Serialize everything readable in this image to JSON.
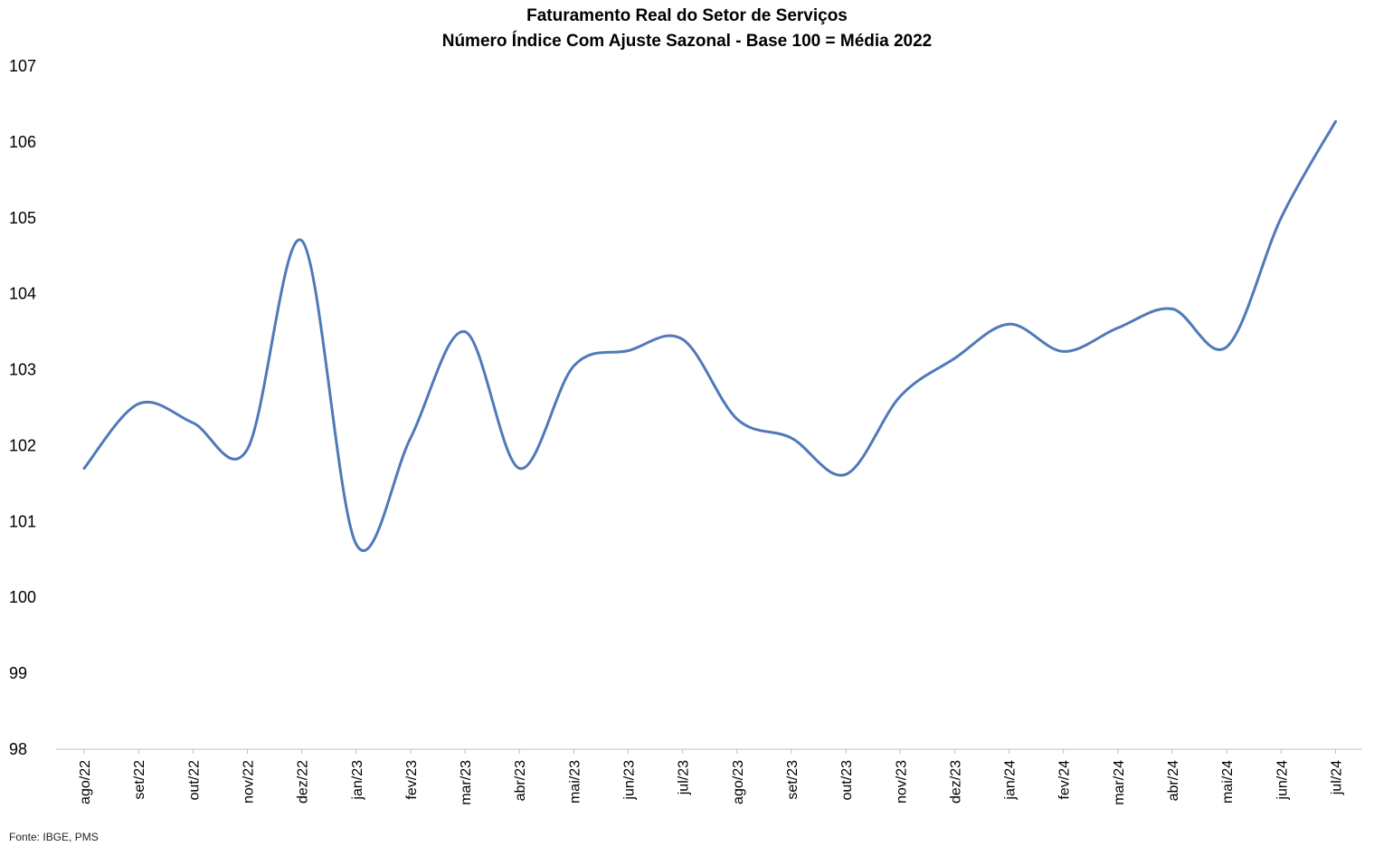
{
  "chart_data": {
    "type": "line",
    "title": "Faturamento Real do Setor de Serviços",
    "subtitle": "Número Índice Com Ajuste Sazonal - Base 100 = Média 2022",
    "xlabel": "",
    "ylabel": "",
    "ylim": [
      98,
      107
    ],
    "yticks": [
      98,
      99,
      100,
      101,
      102,
      103,
      104,
      105,
      106,
      107
    ],
    "categories": [
      "ago/22",
      "set/22",
      "out/22",
      "nov/22",
      "dez/22",
      "jan/23",
      "fev/23",
      "mar/23",
      "abr/23",
      "mai/23",
      "jun/23",
      "jul/23",
      "ago/23",
      "set/23",
      "out/23",
      "nov/23",
      "dez/23",
      "jan/24",
      "fev/24",
      "mar/24",
      "abr/24",
      "mai/24",
      "jun/24",
      "jul/24"
    ],
    "series": [
      {
        "color": "#4f79b8",
        "values": [
          101.7,
          102.55,
          102.3,
          101.95,
          104.7,
          100.7,
          102.1,
          103.5,
          101.7,
          103.05,
          103.25,
          103.4,
          102.35,
          102.1,
          101.62,
          102.65,
          103.15,
          103.6,
          103.24,
          103.55,
          103.8,
          103.3,
          105.0,
          106.27
        ]
      }
    ],
    "grid": false,
    "legend": "none",
    "source": "Fonte: IBGE, PMS"
  }
}
